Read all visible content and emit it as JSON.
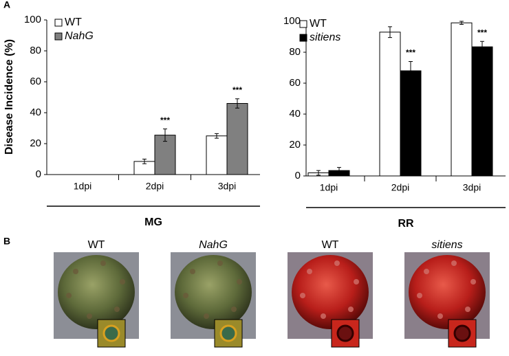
{
  "panel_labels": [
    "A",
    "B"
  ],
  "chart_data": [
    {
      "type": "bar",
      "ylabel": "Disease Incidence (%)",
      "group_label": "MG",
      "categories": [
        "1dpi",
        "2dpi",
        "3dpi"
      ],
      "series": [
        {
          "name": "WT",
          "color": "#ffffff",
          "values": [
            0,
            8.5,
            25
          ],
          "errors": [
            0,
            1.5,
            1.5
          ]
        },
        {
          "name": "NahG",
          "color": "#808080",
          "values": [
            0,
            25.5,
            46
          ],
          "errors": [
            0,
            4,
            3
          ]
        }
      ],
      "annotations": [
        null,
        "***",
        "***"
      ],
      "ylim": [
        0,
        100
      ],
      "yticks": [
        0,
        20,
        40,
        60,
        80,
        100
      ]
    },
    {
      "type": "bar",
      "group_label": "RR",
      "categories": [
        "1dpi",
        "2dpi",
        "3dpi"
      ],
      "series": [
        {
          "name": "WT",
          "color": "#ffffff",
          "values": [
            2,
            93,
            99
          ],
          "errors": [
            1.5,
            3.5,
            1
          ]
        },
        {
          "name": "sitiens",
          "color": "#000000",
          "values": [
            3.5,
            68,
            83.5
          ],
          "errors": [
            2,
            6,
            3.5
          ]
        }
      ],
      "annotations": [
        null,
        "***",
        "***"
      ],
      "ylim": [
        0,
        100
      ],
      "yticks": [
        0,
        20,
        40,
        60,
        80,
        100
      ]
    }
  ],
  "photos": [
    {
      "label": "WT"
    },
    {
      "label": "NahG"
    },
    {
      "label": "WT"
    },
    {
      "label": "sitiens"
    }
  ]
}
